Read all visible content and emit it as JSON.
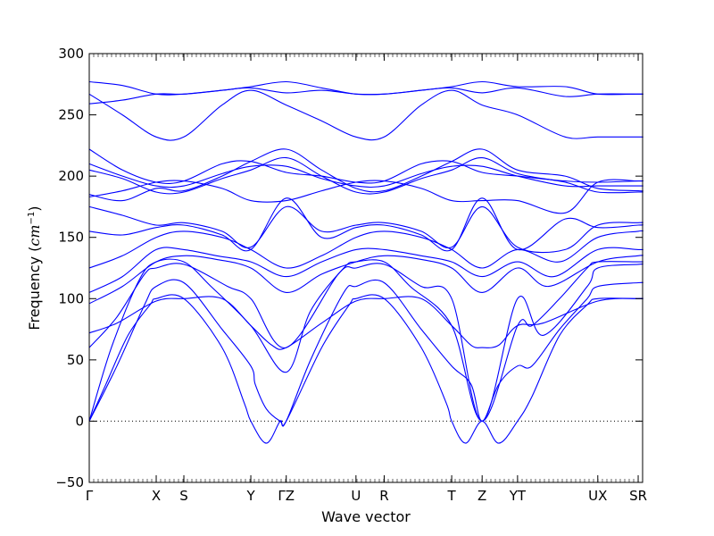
{
  "chart_data": {
    "type": "line",
    "title": "",
    "xlabel": "Wave vector",
    "ylabel_text": "Frequency (",
    "ylabel_unit": "cm",
    "ylabel_exp": "−1",
    "ylabel_close": ")",
    "ylim": [
      -50,
      300
    ],
    "yticks": [
      -50,
      0,
      50,
      100,
      150,
      200,
      250,
      300
    ],
    "ytick_labels": [
      "−50",
      "0",
      "50",
      "100",
      "150",
      "200",
      "250",
      "300"
    ],
    "xlim": [
      0,
      1
    ],
    "kpoints": [
      {
        "label": "Γ",
        "x": 0.0
      },
      {
        "label": "X",
        "x": 0.121
      },
      {
        "label": "S",
        "x": 0.171
      },
      {
        "label": "Y",
        "x": 0.292
      },
      {
        "label": "ΓZ",
        "x": 0.356
      },
      {
        "label": "U",
        "x": 0.482
      },
      {
        "label": "R",
        "x": 0.533
      },
      {
        "label": "T",
        "x": 0.655
      },
      {
        "label": "Z",
        "x": 0.71
      },
      {
        "label": "YT",
        "x": 0.774
      },
      {
        "label": "UX",
        "x": 0.919
      },
      {
        "label": "SR",
        "x": 0.992
      }
    ],
    "zero_line": {
      "y": 0,
      "style": "dotted"
    },
    "line_color": "#0000ff",
    "series": [
      {
        "x": [
          0,
          0.03,
          0.07,
          0.11,
          0.121,
          0.171,
          0.24,
          0.28,
          0.292,
          0.32,
          0.345,
          0.356,
          0.42,
          0.47,
          0.482,
          0.533,
          0.6,
          0.645,
          0.655,
          0.68,
          0.71,
          0.74,
          0.774,
          0.8,
          0.85,
          0.9,
          0.919,
          0.992,
          1
        ],
        "y": [
          0,
          30,
          70,
          95,
          100,
          100,
          60,
          15,
          0,
          -18,
          0,
          0,
          60,
          95,
          100,
          100,
          60,
          15,
          0,
          -18,
          0,
          -18,
          0,
          20,
          70,
          95,
          100,
          100,
          100
        ]
      },
      {
        "x": [
          0,
          0.05,
          0.1,
          0.121,
          0.171,
          0.24,
          0.292,
          0.3,
          0.32,
          0.345,
          0.356,
          0.4,
          0.46,
          0.482,
          0.533,
          0.6,
          0.655,
          0.69,
          0.71,
          0.74,
          0.774,
          0.8,
          0.85,
          0.9,
          0.919,
          0.992,
          1
        ],
        "y": [
          0,
          45,
          95,
          110,
          113,
          75,
          45,
          30,
          10,
          0,
          0,
          50,
          105,
          110,
          113,
          75,
          45,
          30,
          0,
          30,
          45,
          45,
          75,
          100,
          110,
          113,
          113
        ]
      },
      {
        "x": [
          0,
          0.04,
          0.09,
          0.121,
          0.171,
          0.22,
          0.292,
          0.356,
          0.4,
          0.46,
          0.482,
          0.533,
          0.58,
          0.655,
          0.71,
          0.774,
          0.8,
          0.85,
          0.9,
          0.919,
          0.992,
          1
        ],
        "y": [
          0,
          60,
          115,
          130,
          130,
          110,
          78,
          40,
          90,
          125,
          130,
          130,
          110,
          78,
          0,
          78,
          78,
          100,
          125,
          130,
          130,
          130
        ]
      },
      {
        "x": [
          0,
          0.05,
          0.1,
          0.121,
          0.171,
          0.25,
          0.292,
          0.356,
          0.45,
          0.482,
          0.533,
          0.6,
          0.655,
          0.71,
          0.774,
          0.82,
          0.9,
          0.919,
          0.992,
          1
        ],
        "y": [
          60,
          85,
          120,
          125,
          128,
          110,
          100,
          60,
          120,
          125,
          128,
          110,
          100,
          0,
          100,
          70,
          110,
          125,
          128,
          128
        ]
      },
      {
        "x": [
          0,
          0.05,
          0.121,
          0.171,
          0.24,
          0.292,
          0.33,
          0.356,
          0.42,
          0.482,
          0.533,
          0.6,
          0.655,
          0.69,
          0.71,
          0.74,
          0.774,
          0.82,
          0.919,
          0.992,
          1
        ],
        "y": [
          72,
          80,
          98,
          100,
          100,
          78,
          62,
          60,
          80,
          98,
          100,
          100,
          78,
          62,
          60,
          62,
          78,
          80,
          98,
          100,
          100
        ]
      },
      {
        "x": [
          0,
          0.06,
          0.121,
          0.171,
          0.23,
          0.292,
          0.356,
          0.42,
          0.482,
          0.533,
          0.6,
          0.655,
          0.71,
          0.774,
          0.83,
          0.919,
          0.992,
          1
        ],
        "y": [
          96,
          110,
          130,
          135,
          132,
          125,
          105,
          120,
          130,
          135,
          132,
          125,
          105,
          125,
          110,
          130,
          135,
          135
        ]
      },
      {
        "x": [
          0,
          0.06,
          0.121,
          0.171,
          0.23,
          0.292,
          0.356,
          0.42,
          0.482,
          0.533,
          0.6,
          0.655,
          0.71,
          0.774,
          0.84,
          0.919,
          0.992,
          1
        ],
        "y": [
          105,
          118,
          140,
          140,
          135,
          130,
          118,
          130,
          140,
          140,
          135,
          130,
          118,
          130,
          118,
          140,
          140,
          140
        ]
      },
      {
        "x": [
          0,
          0.06,
          0.121,
          0.171,
          0.24,
          0.292,
          0.356,
          0.42,
          0.482,
          0.533,
          0.6,
          0.655,
          0.71,
          0.774,
          0.85,
          0.919,
          0.992,
          1
        ],
        "y": [
          125,
          135,
          150,
          155,
          150,
          140,
          125,
          135,
          150,
          155,
          150,
          140,
          125,
          140,
          130,
          150,
          155,
          155
        ]
      },
      {
        "x": [
          0,
          0.06,
          0.121,
          0.171,
          0.24,
          0.292,
          0.356,
          0.42,
          0.482,
          0.533,
          0.6,
          0.655,
          0.71,
          0.774,
          0.86,
          0.919,
          0.992,
          1
        ],
        "y": [
          155,
          152,
          158,
          160,
          152,
          140,
          182,
          150,
          158,
          160,
          152,
          140,
          182,
          140,
          165,
          158,
          160,
          160
        ]
      },
      {
        "x": [
          0,
          0.06,
          0.121,
          0.171,
          0.24,
          0.292,
          0.356,
          0.42,
          0.482,
          0.533,
          0.6,
          0.655,
          0.71,
          0.774,
          0.86,
          0.919,
          0.992,
          1
        ],
        "y": [
          175,
          168,
          160,
          162,
          155,
          142,
          175,
          155,
          160,
          162,
          155,
          142,
          175,
          142,
          140,
          160,
          162,
          162
        ]
      },
      {
        "x": [
          0,
          0.06,
          0.121,
          0.171,
          0.24,
          0.292,
          0.356,
          0.42,
          0.482,
          0.533,
          0.6,
          0.655,
          0.71,
          0.774,
          0.86,
          0.919,
          0.992,
          1
        ],
        "y": [
          183,
          188,
          195,
          196,
          190,
          180,
          180,
          188,
          195,
          196,
          190,
          180,
          180,
          180,
          170,
          195,
          196,
          196
        ]
      },
      {
        "x": [
          0,
          0.06,
          0.121,
          0.171,
          0.24,
          0.292,
          0.356,
          0.42,
          0.482,
          0.533,
          0.6,
          0.655,
          0.71,
          0.774,
          0.86,
          0.919,
          0.992,
          1
        ],
        "y": [
          185,
          180,
          190,
          188,
          200,
          212,
          222,
          205,
          190,
          188,
          200,
          212,
          222,
          205,
          200,
          190,
          188,
          188
        ]
      },
      {
        "x": [
          0,
          0.06,
          0.121,
          0.171,
          0.24,
          0.292,
          0.356,
          0.42,
          0.482,
          0.533,
          0.6,
          0.655,
          0.71,
          0.774,
          0.86,
          0.919,
          0.992,
          1
        ],
        "y": [
          205,
          198,
          187,
          187,
          198,
          205,
          215,
          200,
          187,
          187,
          198,
          205,
          215,
          202,
          195,
          187,
          187,
          187
        ]
      },
      {
        "x": [
          0,
          0.06,
          0.121,
          0.171,
          0.24,
          0.292,
          0.356,
          0.42,
          0.482,
          0.533,
          0.6,
          0.655,
          0.71,
          0.774,
          0.86,
          0.919,
          0.992,
          1
        ],
        "y": [
          210,
          200,
          192,
          192,
          202,
          208,
          208,
          198,
          192,
          192,
          202,
          208,
          208,
          200,
          192,
          192,
          192,
          192
        ]
      },
      {
        "x": [
          0,
          0.06,
          0.121,
          0.171,
          0.24,
          0.292,
          0.356,
          0.42,
          0.482,
          0.533,
          0.6,
          0.655,
          0.71,
          0.774,
          0.86,
          0.919,
          0.992,
          1
        ],
        "y": [
          222,
          205,
          195,
          196,
          210,
          212,
          203,
          200,
          195,
          196,
          210,
          212,
          203,
          200,
          196,
          195,
          196,
          196
        ]
      },
      {
        "x": [
          0,
          0.06,
          0.121,
          0.171,
          0.24,
          0.292,
          0.356,
          0.42,
          0.482,
          0.533,
          0.6,
          0.655,
          0.71,
          0.774,
          0.86,
          0.919,
          0.992,
          1
        ],
        "y": [
          259,
          262,
          267,
          267,
          270,
          273,
          277,
          272,
          267,
          267,
          270,
          273,
          277,
          273,
          273,
          267,
          267,
          267
        ]
      },
      {
        "x": [
          0,
          0.06,
          0.121,
          0.171,
          0.24,
          0.292,
          0.356,
          0.42,
          0.482,
          0.533,
          0.6,
          0.655,
          0.71,
          0.774,
          0.86,
          0.919,
          0.992,
          1
        ],
        "y": [
          277,
          274,
          267,
          267,
          270,
          272,
          268,
          270,
          267,
          267,
          270,
          272,
          268,
          272,
          265,
          267,
          267,
          267
        ]
      },
      {
        "x": [
          0,
          0.06,
          0.121,
          0.171,
          0.24,
          0.292,
          0.356,
          0.42,
          0.482,
          0.533,
          0.6,
          0.655,
          0.71,
          0.774,
          0.86,
          0.919,
          0.992,
          1
        ],
        "y": [
          267,
          250,
          232,
          232,
          258,
          270,
          258,
          245,
          232,
          232,
          258,
          270,
          258,
          250,
          232,
          232,
          232,
          232
        ]
      }
    ]
  }
}
